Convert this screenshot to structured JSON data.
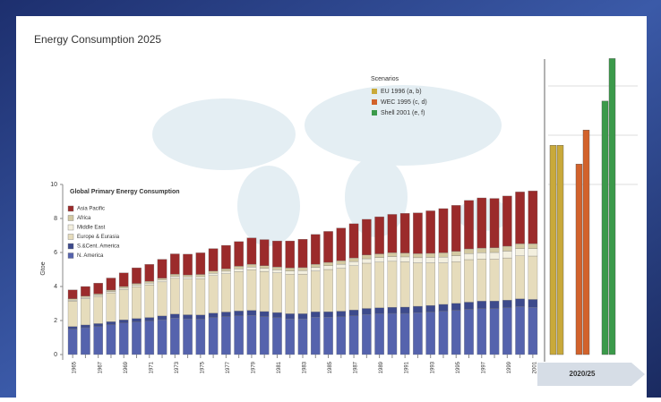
{
  "title": "Energy Consumption 2025",
  "chart_data": [
    {
      "type": "stacked-bar",
      "title": "Global Primary Energy Consumption",
      "ylabel": "Gtoe",
      "categories": [
        "1965",
        null,
        "1967",
        null,
        "1969",
        null,
        "1971",
        null,
        "1973",
        null,
        "1975",
        null,
        "1977",
        null,
        "1979",
        null,
        "1981",
        null,
        "1983",
        null,
        "1985",
        null,
        "1987",
        null,
        "1989",
        null,
        "1991",
        null,
        "1993",
        null,
        "1995",
        null,
        "1997",
        null,
        "1999",
        null,
        "2001"
      ],
      "ylim": [
        0,
        10
      ],
      "yticks": [
        0,
        2,
        4,
        6,
        8,
        10
      ],
      "series": [
        {
          "name": "N. America",
          "color": "#5563ad",
          "values": [
            1.5,
            1.58,
            1.65,
            1.75,
            1.85,
            1.92,
            1.97,
            2.05,
            2.15,
            2.1,
            2.08,
            2.18,
            2.23,
            2.28,
            2.3,
            2.23,
            2.17,
            2.1,
            2.1,
            2.2,
            2.2,
            2.22,
            2.28,
            2.36,
            2.4,
            2.42,
            2.42,
            2.46,
            2.5,
            2.55,
            2.6,
            2.66,
            2.7,
            2.7,
            2.75,
            2.82,
            2.78
          ]
        },
        {
          "name": "S.&Cent. America",
          "color": "#3d4a8c",
          "values": [
            0.15,
            0.16,
            0.17,
            0.18,
            0.19,
            0.2,
            0.21,
            0.22,
            0.23,
            0.24,
            0.25,
            0.26,
            0.27,
            0.28,
            0.3,
            0.3,
            0.3,
            0.3,
            0.3,
            0.31,
            0.32,
            0.33,
            0.34,
            0.35,
            0.35,
            0.36,
            0.37,
            0.38,
            0.39,
            0.4,
            0.41,
            0.42,
            0.44,
            0.45,
            0.45,
            0.46,
            0.46
          ]
        },
        {
          "name": "Europe & Eurasia",
          "color": "#e6dcbc",
          "values": [
            1.5,
            1.55,
            1.6,
            1.7,
            1.78,
            1.87,
            1.92,
            2.0,
            2.1,
            2.1,
            2.12,
            2.2,
            2.25,
            2.32,
            2.38,
            2.36,
            2.33,
            2.32,
            2.33,
            2.4,
            2.48,
            2.52,
            2.6,
            2.66,
            2.68,
            2.7,
            2.66,
            2.55,
            2.5,
            2.44,
            2.45,
            2.5,
            2.48,
            2.46,
            2.48,
            2.52,
            2.55
          ]
        },
        {
          "name": "Middle East",
          "color": "#f3efde",
          "values": [
            0.05,
            0.06,
            0.06,
            0.07,
            0.08,
            0.09,
            0.1,
            0.11,
            0.12,
            0.12,
            0.13,
            0.14,
            0.15,
            0.16,
            0.17,
            0.17,
            0.18,
            0.19,
            0.2,
            0.21,
            0.22,
            0.24,
            0.25,
            0.26,
            0.27,
            0.28,
            0.29,
            0.3,
            0.32,
            0.34,
            0.35,
            0.36,
            0.37,
            0.39,
            0.4,
            0.42,
            0.43
          ]
        },
        {
          "name": "Africa",
          "color": "#d3c9a2",
          "values": [
            0.08,
            0.08,
            0.09,
            0.09,
            0.1,
            0.1,
            0.11,
            0.11,
            0.12,
            0.12,
            0.13,
            0.13,
            0.14,
            0.15,
            0.16,
            0.16,
            0.17,
            0.18,
            0.18,
            0.19,
            0.2,
            0.21,
            0.21,
            0.22,
            0.22,
            0.23,
            0.23,
            0.24,
            0.24,
            0.25,
            0.26,
            0.27,
            0.27,
            0.28,
            0.29,
            0.29,
            0.3
          ]
        },
        {
          "name": "Asia Pacific",
          "color": "#9b2b2b",
          "values": [
            0.52,
            0.57,
            0.63,
            0.71,
            0.8,
            0.92,
            0.99,
            1.11,
            1.2,
            1.22,
            1.27,
            1.32,
            1.38,
            1.45,
            1.55,
            1.54,
            1.53,
            1.59,
            1.67,
            1.75,
            1.82,
            1.92,
            2.01,
            2.1,
            2.18,
            2.25,
            2.33,
            2.4,
            2.5,
            2.6,
            2.7,
            2.85,
            2.95,
            2.9,
            2.95,
            3.05,
            3.1
          ]
        }
      ]
    },
    {
      "type": "grouped-bar",
      "legend_title": "Scenarios",
      "x_label": "2020/25",
      "ylim": [
        0,
        20
      ],
      "series": [
        {
          "name": "EU 1996 (a, b)",
          "color": "#c9a93a",
          "values": [
            12.3,
            12.3
          ]
        },
        {
          "name": "WEC 1995 (c, d)",
          "color": "#d2622b",
          "values": [
            11.2,
            13.2
          ]
        },
        {
          "name": "Shell 2001 (e, f)",
          "color": "#3b9a4a",
          "values": [
            14.9,
            17.4
          ]
        }
      ]
    }
  ]
}
